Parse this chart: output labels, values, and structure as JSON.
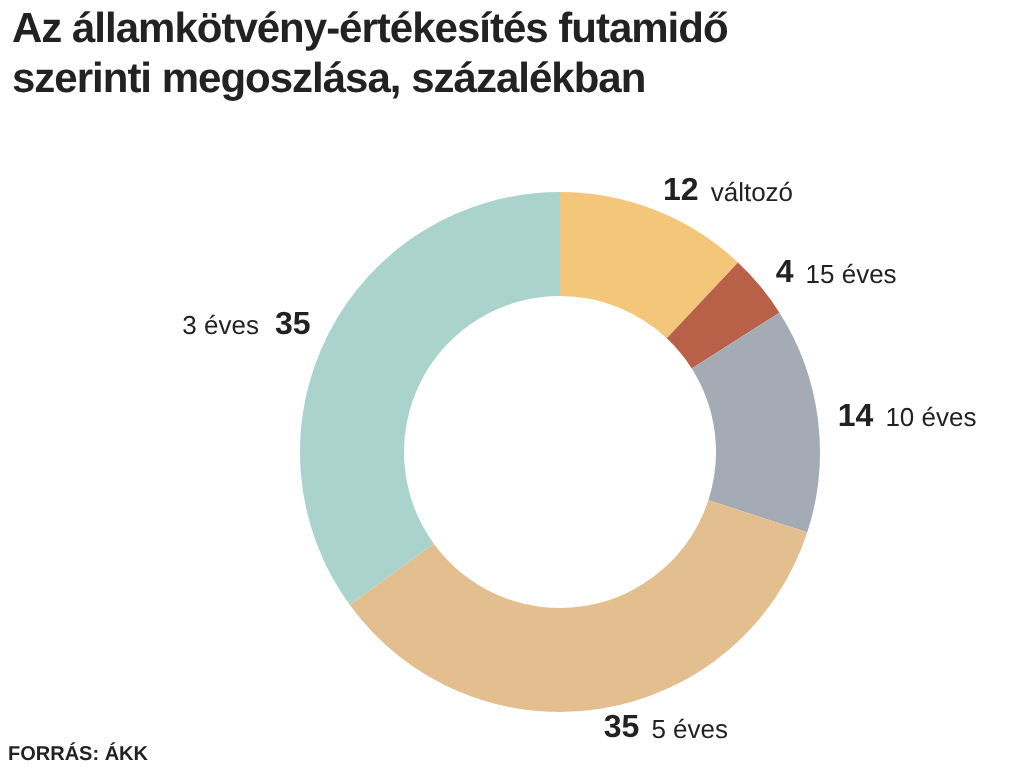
{
  "chart_data": {
    "type": "donut",
    "title": "Az államkötvény-értékesítés futamidő szerinti megoszlása, százalékban",
    "categories": [
      "változó",
      "15 éves",
      "10 éves",
      "5 éves",
      "3 éves"
    ],
    "values": [
      12,
      4,
      14,
      35,
      35
    ],
    "colors": [
      "#f4c67a",
      "#b96148",
      "#a5abb4",
      "#e3be8e",
      "#abd3ce"
    ],
    "data_labels": true,
    "legend": false,
    "annotations": [
      "FORRÁS: ÁKK"
    ]
  }
}
